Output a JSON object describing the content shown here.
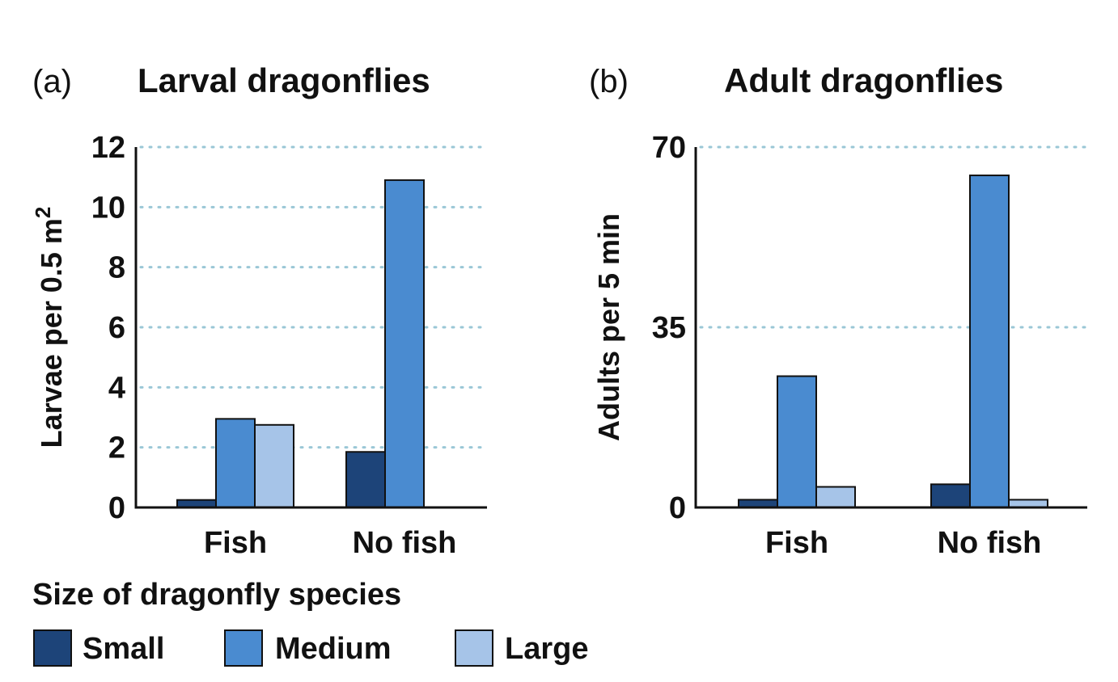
{
  "colors": {
    "Small": "#1d4479",
    "Medium": "#4a8bd0",
    "Large": "#a6c4e8",
    "grid": "#9ac7d6",
    "axis": "#111111"
  },
  "chart_data": [
    {
      "type": "bar",
      "panel_letter": "(a)",
      "title": "Larval dragonflies",
      "ylabel": "Larvae per 0.5 m",
      "ylabel_sup": "2",
      "xlabel": "",
      "categories": [
        "Fish",
        "No fish"
      ],
      "series": [
        {
          "name": "Small",
          "values": [
            0.25,
            1.85
          ]
        },
        {
          "name": "Medium",
          "values": [
            2.95,
            10.9
          ]
        },
        {
          "name": "Large",
          "values": [
            2.75,
            null
          ]
        }
      ],
      "ylim": [
        0,
        12
      ],
      "yticks": [
        0,
        2,
        4,
        6,
        8,
        10,
        12
      ],
      "grid": "dotted horizontal"
    },
    {
      "type": "bar",
      "panel_letter": "(b)",
      "title": "Adult dragonflies",
      "ylabel": "Adults per 5 min",
      "ylabel_sup": "",
      "xlabel": "",
      "categories": [
        "Fish",
        "No fish"
      ],
      "series": [
        {
          "name": "Small",
          "values": [
            1.5,
            4.5
          ]
        },
        {
          "name": "Medium",
          "values": [
            25.5,
            64.5
          ]
        },
        {
          "name": "Large",
          "values": [
            4.0,
            1.5
          ]
        }
      ],
      "ylim": [
        0,
        70
      ],
      "yticks": [
        0,
        35,
        70
      ],
      "grid": "dotted horizontal"
    }
  ],
  "legend": {
    "title": "Size of dragonfly species",
    "items": [
      "Small",
      "Medium",
      "Large"
    ],
    "placement": "bottom-left"
  }
}
